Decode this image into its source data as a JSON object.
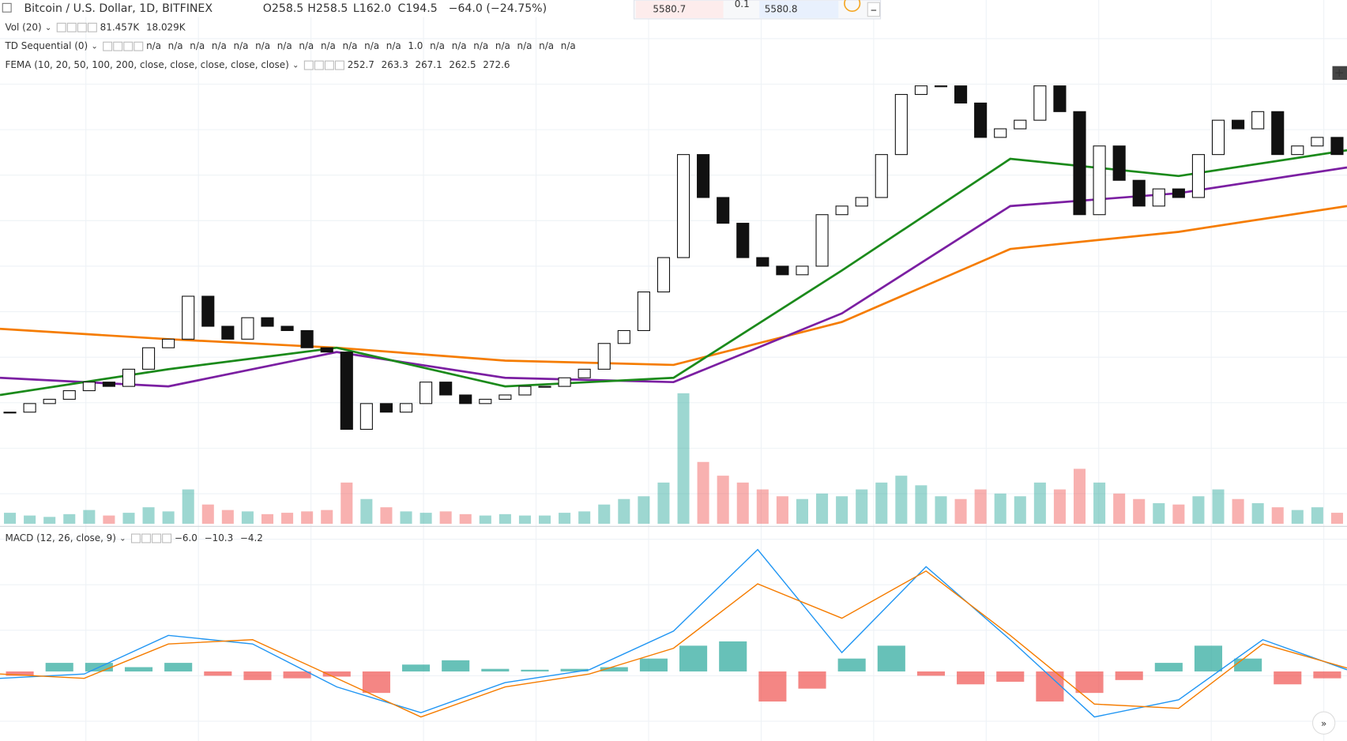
{
  "header": {
    "symbol": "Bitcoin / U.S. Dollar, 1D, BITFINEX",
    "ohlc": [
      "O258.5",
      "H258.5",
      "L162.0",
      "C194.5",
      "−64.0 (−24.75%)"
    ]
  },
  "order_panel": {
    "sell": "5580.7",
    "spread": "0.1",
    "buy": "5580.8"
  },
  "indicators": [
    {
      "name": "Vol (20)",
      "values": [
        {
          "text": "81.457K",
          "color": "#ef5350"
        },
        {
          "text": "18.029K",
          "color": "#f7931a"
        }
      ]
    },
    {
      "name": "TD Sequential (0)",
      "values": [
        {
          "text": "n/a",
          "color": "#1b8a1b"
        },
        {
          "text": "n/a",
          "color": "#1b8a1b"
        },
        {
          "text": "n/a",
          "color": "#1b8a1b"
        },
        {
          "text": "n/a",
          "color": "#1b8a1b"
        },
        {
          "text": "n/a",
          "color": "#1b8a1b"
        },
        {
          "text": "n/a",
          "color": "#1b8a1b"
        },
        {
          "text": "n/a",
          "color": "#1b8a1b"
        },
        {
          "text": "n/a",
          "color": "#1b8a1b"
        },
        {
          "text": "n/a",
          "color": "#1b8a1b"
        },
        {
          "text": "n/a",
          "color": "#e53935"
        },
        {
          "text": "n/a",
          "color": "#e53935"
        },
        {
          "text": "n/a",
          "color": "#e53935"
        },
        {
          "text": "1.0",
          "color": "#e53935"
        },
        {
          "text": "n/a",
          "color": "#e53935"
        },
        {
          "text": "n/a",
          "color": "#e53935"
        },
        {
          "text": "n/a",
          "color": "#e53935"
        },
        {
          "text": "n/a",
          "color": "#e53935"
        },
        {
          "text": "n/a",
          "color": "#e53935"
        },
        {
          "text": "n/a",
          "color": "#555555"
        },
        {
          "text": "n/a",
          "color": "#555555"
        }
      ]
    },
    {
      "name": "FEMA (10, 20, 50, 100, 200, close, close, close, close, close)",
      "values": [
        {
          "text": "252.7",
          "color": "#e53935"
        },
        {
          "text": "263.3",
          "color": "#e6e600"
        },
        {
          "text": "267.1",
          "color": "#1b8a1b"
        },
        {
          "text": "262.5",
          "color": "#8e24aa"
        },
        {
          "text": "272.6",
          "color": "#f57c00"
        }
      ]
    },
    {
      "name": "MACD (12, 26, close, 9)",
      "values": [
        {
          "text": "−6.0",
          "color": "#f26c3c"
        },
        {
          "text": "−10.3",
          "color": "#2196f3"
        },
        {
          "text": "−4.2",
          "color": "#f57c00"
        }
      ]
    }
  ],
  "chart_data": [
    {
      "type": "candlestick",
      "ylim": [
        -10,
        600
      ],
      "values": [
        120,
        130,
        135,
        145,
        155,
        150,
        170,
        195,
        205,
        255,
        220,
        205,
        230,
        220,
        215,
        195,
        190,
        100,
        130,
        120,
        130,
        155,
        140,
        130,
        135,
        140,
        150,
        150,
        160,
        170,
        200,
        215,
        260,
        300,
        420,
        370,
        340,
        300,
        290,
        280,
        290,
        350,
        360,
        370,
        420,
        490,
        500,
        500,
        480,
        440,
        450,
        460,
        500,
        470,
        350,
        430,
        390,
        360,
        380,
        370,
        420,
        460,
        450,
        470,
        420,
        430,
        440,
        420
      ],
      "volume": {
        "ylim": [
          0,
          100
        ],
        "values": [
          8,
          6,
          5,
          7,
          10,
          6,
          8,
          12,
          9,
          25,
          14,
          10,
          9,
          7,
          8,
          9,
          10,
          30,
          18,
          12,
          9,
          8,
          9,
          7,
          6,
          7,
          6,
          6,
          8,
          9,
          14,
          18,
          20,
          30,
          95,
          45,
          35,
          30,
          25,
          20,
          18,
          22,
          20,
          25,
          30,
          35,
          28,
          20,
          18,
          25,
          22,
          20,
          30,
          25,
          40,
          30,
          22,
          18,
          15,
          14,
          20,
          25,
          18,
          15,
          12,
          10,
          12,
          8
        ]
      },
      "series": [
        {
          "color": "#f57c00",
          "values": [
            217,
            205,
            195,
            180,
            175,
            225,
            310,
            330,
            360
          ]
        },
        {
          "color": "#7b1fa2",
          "values": [
            160,
            150,
            190,
            160,
            155,
            235,
            360,
            375,
            405
          ]
        },
        {
          "color": "#1b8a1b",
          "values": [
            140,
            170,
            195,
            150,
            160,
            285,
            415,
            395,
            425
          ]
        }
      ]
    },
    {
      "type": "macd",
      "ylim": [
        -8,
        16
      ],
      "histogram": [
        -0.5,
        1,
        1,
        0.5,
        1,
        -0.5,
        -1,
        -0.8,
        -0.6,
        -2.5,
        0.8,
        1.3,
        0.3,
        0.2,
        0.3,
        0.5,
        1.5,
        3,
        3.5,
        -3.5,
        -2,
        1.5,
        3,
        -0.5,
        -1.5,
        -1.2,
        -3.5,
        -2.5,
        -1,
        1,
        3,
        1.5,
        -1.5,
        -0.8
      ],
      "series": [
        {
          "color": "#2196f3",
          "values": [
            -0.8,
            -0.3,
            4.2,
            3.2,
            -1.8,
            -4.8,
            -1.3,
            0.2,
            4.7,
            14.2,
            2.2,
            12.2,
            3.7,
            -5.3,
            -3.3,
            3.7,
            0.2
          ]
        },
        {
          "color": "#f57c00",
          "values": [
            -0.3,
            -0.8,
            3.2,
            3.7,
            -0.8,
            -5.3,
            -1.8,
            -0.3,
            2.7,
            10.2,
            6.2,
            11.7,
            4.2,
            -3.8,
            -4.3,
            3.2,
            0.4
          ]
        }
      ]
    }
  ]
}
